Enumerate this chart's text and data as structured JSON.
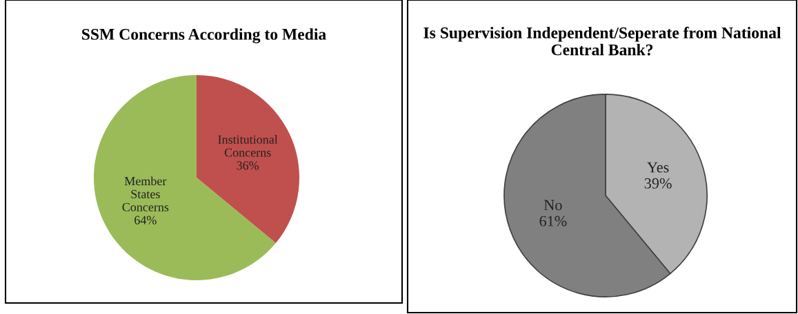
{
  "chart_data": [
    {
      "type": "pie",
      "title": "SSM Concerns According to Media",
      "categories": [
        "Institutional Concerns",
        "Member States Concerns"
      ],
      "values": [
        36,
        64
      ],
      "colors": [
        "#c0504d",
        "#9bbb59"
      ],
      "value_labels": [
        "36%",
        "64%"
      ]
    },
    {
      "type": "pie",
      "title": "Is Supervision Independent/Seperate from National Central Bank?",
      "categories": [
        "Yes",
        "No"
      ],
      "values": [
        39,
        61
      ],
      "colors": [
        "#b3b3b3",
        "#808080"
      ],
      "value_labels": [
        "39%",
        "61%"
      ]
    }
  ]
}
